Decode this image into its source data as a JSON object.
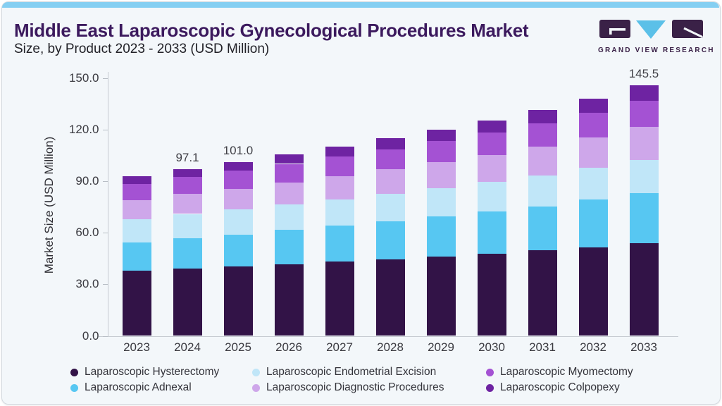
{
  "header": {
    "title": "Middle East Laparoscopic Gynecological Procedures Market",
    "subtitle": "Size, by Product 2023 - 2033 (USD Million)",
    "logo_text": "GRAND VIEW RESEARCH"
  },
  "colors": {
    "accent_bar": "#85CFF2",
    "card_background": "#F3F7FA",
    "title_text": "#3C1A5E",
    "logo_dark": "#3A2147",
    "logo_cyan": "#5BC0E8",
    "axis_line": "#C6CBD1"
  },
  "chart_data": {
    "type": "bar",
    "stacked": true,
    "title": "Middle East Laparoscopic Gynecological Procedures Market",
    "subtitle": "Size, by Product 2023 - 2033 (USD Million)",
    "ylabel": "Market Size (USD Million)",
    "xlabel": "",
    "ylim": [
      0,
      150
    ],
    "grid": false,
    "legend_position": "bottom",
    "ytick_labels": [
      "0.0",
      "30.0",
      "60.0",
      "90.0",
      "120.0",
      "150.0"
    ],
    "categories": [
      "2023",
      "2024",
      "2025",
      "2026",
      "2027",
      "2028",
      "2029",
      "2030",
      "2031",
      "2032",
      "2033"
    ],
    "series": [
      {
        "name": "Laparoscopic Hysterectomy",
        "color": "#321347",
        "values": [
          37.8,
          39.2,
          40.4,
          41.8,
          43.2,
          44.6,
          46.2,
          47.8,
          49.6,
          51.6,
          53.9
        ]
      },
      {
        "name": "Laparoscopic Adnexal",
        "color": "#57C7F2",
        "values": [
          16.7,
          17.7,
          18.6,
          19.7,
          20.8,
          21.9,
          23.1,
          24.4,
          25.8,
          27.5,
          29.2
        ]
      },
      {
        "name": "Laparoscopic Endometrial Excision",
        "color": "#C0E6F8",
        "values": [
          13.5,
          14.0,
          14.5,
          14.9,
          15.4,
          16.0,
          16.5,
          17.2,
          17.8,
          18.5,
          19.3
        ]
      },
      {
        "name": "Laparoscopic Diagnostic Procedures",
        "color": "#CEA7EA",
        "values": [
          10.9,
          11.5,
          12.1,
          12.8,
          13.5,
          14.3,
          15.1,
          15.9,
          16.9,
          17.9,
          19.0
        ]
      },
      {
        "name": "Laparoscopic Myomectomy",
        "color": "#A452D3",
        "values": [
          9.5,
          10.0,
          10.4,
          10.8,
          11.3,
          11.8,
          12.4,
          13.0,
          13.6,
          14.3,
          15.2
        ]
      },
      {
        "name": "Laparoscopic Colpopexy",
        "color": "#6E23A2",
        "values": [
          4.4,
          4.7,
          5.0,
          5.4,
          5.8,
          6.2,
          6.6,
          7.1,
          7.6,
          8.2,
          8.9
        ]
      }
    ],
    "totals": [
      92.8,
      97.1,
      101.0,
      105.4,
      110.0,
      114.8,
      119.9,
      125.4,
      131.3,
      138.0,
      145.5
    ],
    "value_labels": {
      "2024": "97.1",
      "2025": "101.0",
      "2033": "145.5"
    },
    "legend_rows": [
      [
        "Laparoscopic Hysterectomy",
        "Laparoscopic Endometrial Excision",
        "Laparoscopic Myomectomy"
      ],
      [
        "Laparoscopic Adnexal",
        "Laparoscopic Diagnostic Procedures",
        "Laparoscopic Colpopexy"
      ]
    ]
  }
}
